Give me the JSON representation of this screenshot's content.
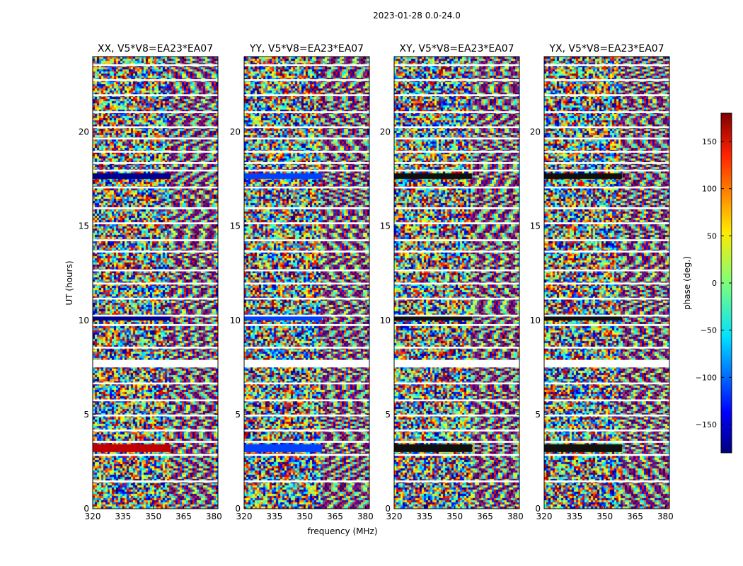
{
  "chart_data": {
    "type": "heatmap",
    "title": "2023-01-28 0.0-24.0",
    "xlabel": "frequency (MHz)",
    "ylabel": "UT (hours)",
    "xlim": [
      320,
      382
    ],
    "ylim": [
      0,
      24
    ],
    "xticks": [
      "320",
      "335",
      "350",
      "365",
      "380"
    ],
    "yticks": [
      "0",
      "5",
      "10",
      "15",
      "20"
    ],
    "panels": [
      {
        "name": "XX",
        "title": "XX, V5*V8=EA23*EA07"
      },
      {
        "name": "YY",
        "title": "YY, V5*V8=EA23*EA07"
      },
      {
        "name": "XY",
        "title": "XY, V5*V8=EA23*EA07"
      },
      {
        "name": "YX",
        "title": "YX, V5*V8=EA23*EA07"
      }
    ],
    "colorbar": {
      "label": "phase (deg.)",
      "range": [
        -180,
        180
      ],
      "ticks": [
        "150",
        "100",
        "50",
        "0",
        "−50",
        "−100",
        "−150"
      ],
      "colormap": "jet"
    },
    "flagged_intervals_hours": [
      [
        23.5,
        23.6
      ],
      [
        22.7,
        22.8
      ],
      [
        21.9,
        22.0
      ],
      [
        21.0,
        21.1
      ],
      [
        20.2,
        20.3
      ],
      [
        19.6,
        19.7
      ],
      [
        18.9,
        19.0
      ],
      [
        18.3,
        18.4
      ],
      [
        17.9,
        18.0
      ],
      [
        17.0,
        17.1
      ],
      [
        15.9,
        16.0
      ],
      [
        15.1,
        15.2
      ],
      [
        14.2,
        14.3
      ],
      [
        13.6,
        13.7
      ],
      [
        12.6,
        12.7
      ],
      [
        11.9,
        12.0
      ],
      [
        11.1,
        11.2
      ],
      [
        10.2,
        10.3
      ],
      [
        9.7,
        9.8
      ],
      [
        8.5,
        8.6
      ],
      [
        7.5,
        7.9
      ],
      [
        6.6,
        6.7
      ],
      [
        5.7,
        5.8
      ],
      [
        4.9,
        5.0
      ],
      [
        4.1,
        4.2
      ],
      [
        3.5,
        3.6
      ],
      [
        2.8,
        2.9
      ],
      [
        1.4,
        1.5
      ]
    ]
  }
}
